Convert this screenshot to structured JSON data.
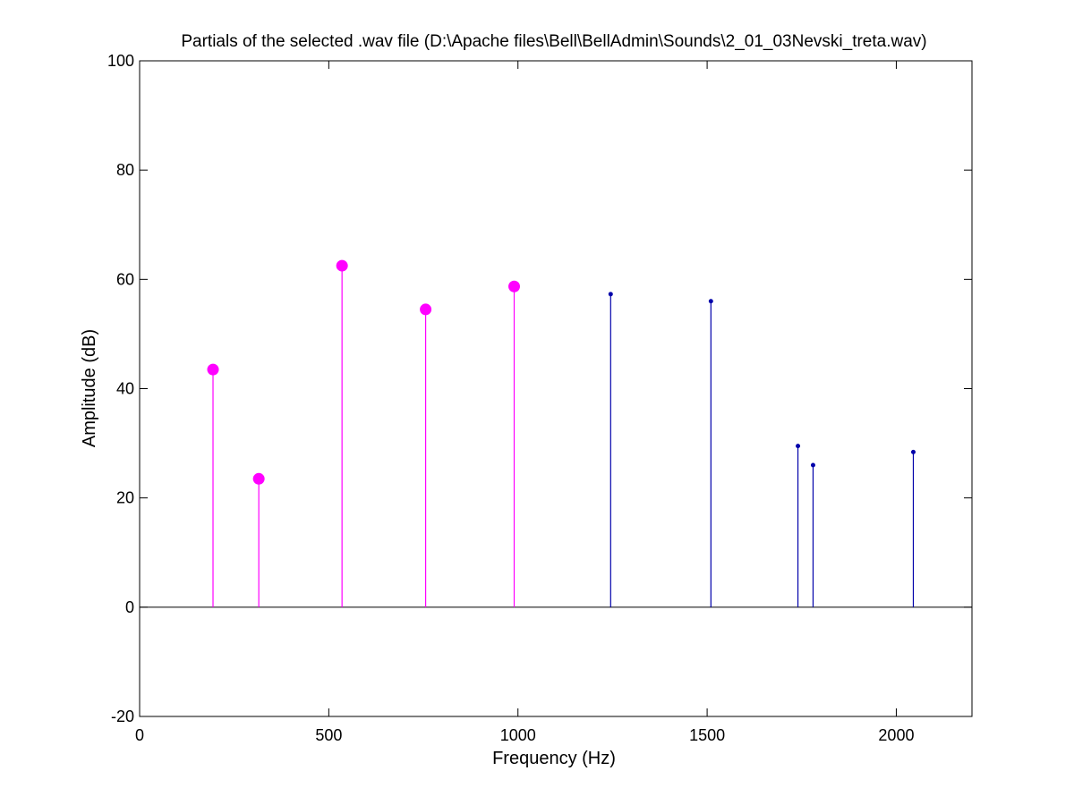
{
  "chart_data": {
    "type": "stem",
    "title": "Partials of the selected .wav file (D:\\Apache files\\Bell\\BellAdmin\\Sounds\\2_01_03Nevski_treta.wav)",
    "xlabel": "Frequency (Hz)",
    "ylabel": "Amplitude (dB)",
    "xlim": [
      0,
      2200
    ],
    "ylim": [
      -20,
      100
    ],
    "xticks": [
      0,
      500,
      1000,
      1500,
      2000
    ],
    "yticks": [
      -20,
      0,
      20,
      40,
      60,
      80,
      100
    ],
    "grid": false,
    "series": [
      {
        "color": "#ff00ff",
        "marker": "large-dot",
        "x": [
          194,
          315,
          535,
          756,
          990
        ],
        "y": [
          43.5,
          23.5,
          62.5,
          54.5,
          58.7
        ]
      },
      {
        "color": "#0000aa",
        "marker": "small-dot",
        "x": [
          1245,
          1510,
          1740,
          1780,
          2045
        ],
        "y": [
          57.3,
          56.0,
          29.5,
          26.0,
          28.4
        ]
      }
    ]
  }
}
